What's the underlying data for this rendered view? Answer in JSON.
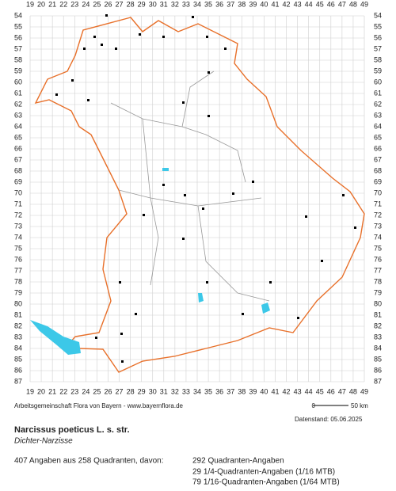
{
  "map": {
    "columns": [
      19,
      20,
      21,
      22,
      23,
      24,
      25,
      26,
      27,
      28,
      29,
      30,
      31,
      32,
      33,
      34,
      35,
      36,
      37,
      38,
      39,
      40,
      41,
      42,
      43,
      44,
      45,
      46,
      47,
      48,
      49
    ],
    "rows": [
      54,
      55,
      56,
      57,
      58,
      59,
      60,
      61,
      62,
      63,
      64,
      65,
      66,
      67,
      68,
      69,
      70,
      71,
      72,
      73,
      74,
      75,
      76,
      77,
      78,
      79,
      80,
      81,
      82,
      83,
      84,
      85,
      86,
      87
    ],
    "credit": "Arbeitsgemeinschaft Flora von Bayern - www.bayernflora.de",
    "scale_start": "0",
    "scale_end": "50 km",
    "date": "Datenstand: 05.06.2025",
    "title": "Narcissus poeticus L. s. str.",
    "subtitle": "Dichter-Narzisse",
    "summary": "407 Angaben aus 258 Quadranten, davon:",
    "counts": [
      "292 Quadranten-Angaben",
      "29 1/4-Quadranten-Angaben (1/16 MTB)",
      "79 1/16-Quadranten-Angaben (1/64 MTB)"
    ]
  }
}
